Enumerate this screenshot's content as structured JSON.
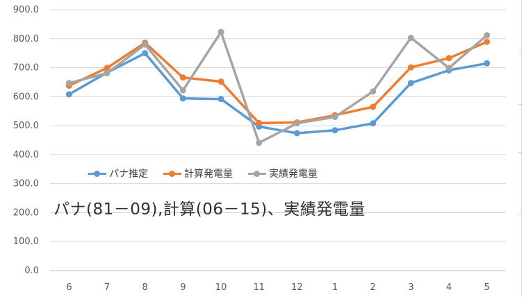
{
  "chart_data": {
    "type": "line",
    "categories": [
      "6",
      "7",
      "8",
      "9",
      "10",
      "11",
      "12",
      "1",
      "2",
      "3",
      "4",
      "5"
    ],
    "series": [
      {
        "name": "パナ推定",
        "color": "#5b9bd5",
        "values": [
          608,
          683,
          750,
          594,
          592,
          497,
          474,
          484,
          508,
          647,
          691,
          715
        ]
      },
      {
        "name": "計算発電量",
        "color": "#ed7d31",
        "values": [
          638,
          699,
          786,
          666,
          652,
          509,
          511,
          536,
          565,
          701,
          733,
          789
        ]
      },
      {
        "name": "実績発電量",
        "color": "#a5a5a5",
        "values": [
          647,
          681,
          780,
          622,
          823,
          441,
          508,
          530,
          618,
          803,
          699,
          812
        ]
      }
    ],
    "ylim": [
      0,
      900
    ],
    "yticks": [
      "0.0",
      "100.0",
      "200.0",
      "300.0",
      "400.0",
      "500.0",
      "600.0",
      "700.0",
      "800.0",
      "900.0"
    ],
    "grid": true,
    "legend_position": "inside-center-left",
    "annotation": "パナ(81－09),計算(06－15)、実績発電量"
  }
}
